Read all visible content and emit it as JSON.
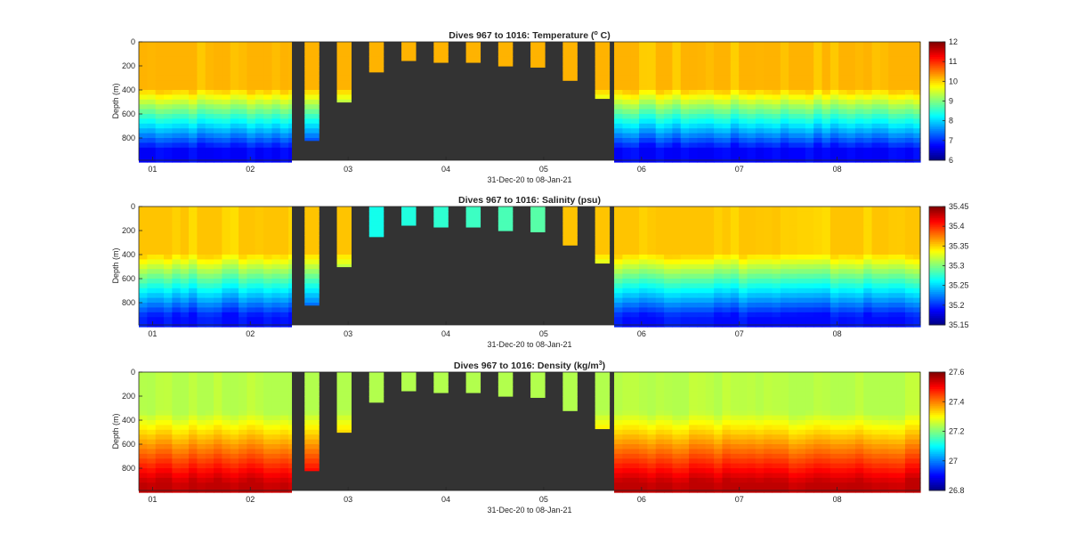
{
  "chart_data": [
    {
      "type": "heatmap",
      "title": "Dives 967 to 1016: Temperature (",
      "title_sup": "o",
      "title_end": " C)",
      "xlabel": "31-Dec-20 to 08-Jan-21",
      "ylabel": "Depth (m)",
      "x_ticks": [
        "01",
        "02",
        "03",
        "04",
        "05",
        "06",
        "07",
        "08"
      ],
      "y_ticks": [
        "0",
        "200",
        "400",
        "600",
        "800"
      ],
      "ylim": [
        0,
        985
      ],
      "xlim": [
        0.86,
        8.85
      ],
      "colorbar": {
        "min": 6,
        "max": 12,
        "ticks": [
          "12",
          "11",
          "10",
          "9",
          "8",
          "7",
          "6"
        ]
      },
      "profile": {
        "surface": 10.2,
        "thermo_top": 380,
        "thermo_bottom": 900,
        "deep": 6.7
      }
    },
    {
      "type": "heatmap",
      "title": "Dives 967 to 1016: Salinity (psu)",
      "title_sup": "",
      "title_end": "",
      "xlabel": "31-Dec-20 to 08-Jan-21",
      "ylabel": "Depth (m)",
      "x_ticks": [
        "01",
        "02",
        "03",
        "04",
        "05",
        "06",
        "07",
        "08"
      ],
      "y_ticks": [
        "0",
        "200",
        "400",
        "600",
        "800"
      ],
      "ylim": [
        0,
        985
      ],
      "xlim": [
        0.86,
        8.85
      ],
      "colorbar": {
        "min": 35.15,
        "max": 35.45,
        "ticks": [
          "35.45",
          "35.4",
          "35.35",
          "35.3",
          "35.25",
          "35.2",
          "35.15"
        ]
      },
      "profile": {
        "surface": 35.355,
        "thermo_top": 380,
        "thermo_bottom": 920,
        "deep": 35.19
      }
    },
    {
      "type": "heatmap",
      "title": "Dives 967 to 1016: Density (kg/m",
      "title_sup": "3",
      "title_end": ")",
      "xlabel": "31-Dec-20 to 08-Jan-21",
      "ylabel": "Depth (m)",
      "x_ticks": [
        "01",
        "02",
        "03",
        "04",
        "05",
        "06",
        "07",
        "08"
      ],
      "y_ticks": [
        "0",
        "200",
        "400",
        "600",
        "800"
      ],
      "ylim": [
        0,
        985
      ],
      "xlim": [
        0.86,
        8.85
      ],
      "colorbar": {
        "min": 26.8,
        "max": 27.6,
        "ticks": [
          "27.6",
          "27.4",
          "27.2",
          "27",
          "26.8"
        ]
      },
      "profile": {
        "surface": 27.24,
        "thermo_top": 330,
        "thermo_bottom": 930,
        "deep": 27.55
      }
    }
  ],
  "dives": {
    "full_depth_segments": [
      [
        0.86,
        2.42
      ],
      [
        5.72,
        8.85
      ]
    ],
    "shallow_dives": [
      {
        "x": 2.63,
        "max_depth": 820
      },
      {
        "x": 2.96,
        "max_depth": 500
      },
      {
        "x": 3.29,
        "max_depth": 250
      },
      {
        "x": 3.62,
        "max_depth": 155
      },
      {
        "x": 3.95,
        "max_depth": 170
      },
      {
        "x": 4.28,
        "max_depth": 170
      },
      {
        "x": 4.61,
        "max_depth": 200
      },
      {
        "x": 4.94,
        "max_depth": 210
      },
      {
        "x": 5.27,
        "max_depth": 320
      },
      {
        "x": 5.6,
        "max_depth": 470
      }
    ]
  },
  "colors": {
    "no_data": "#333333",
    "axis": "#262626"
  }
}
